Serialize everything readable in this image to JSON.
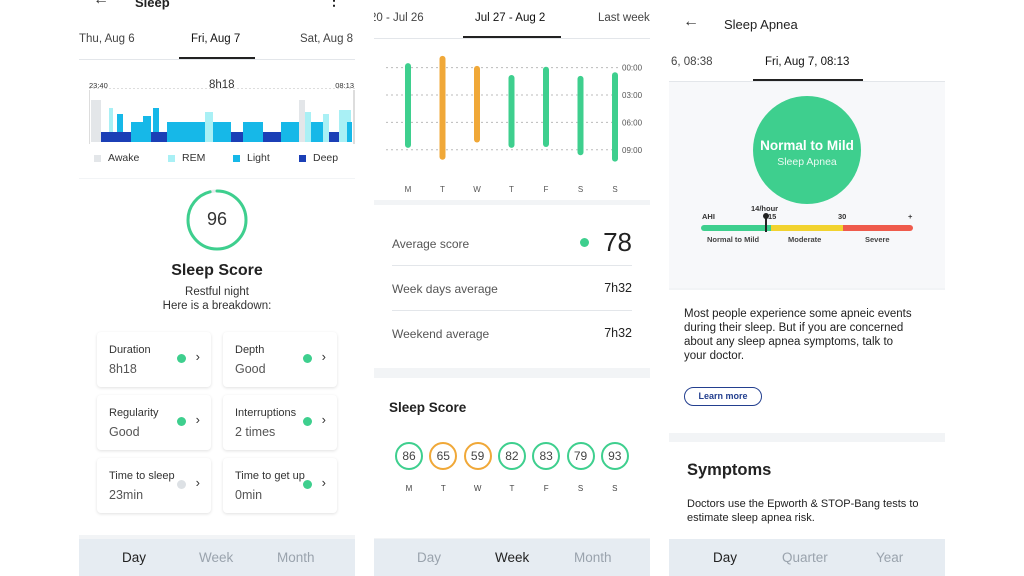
{
  "screen1": {
    "header": {
      "back_icon": "arrow-left-icon",
      "title": "Sleep",
      "menu_icon": "more-vertical-icon"
    },
    "date_tabs": [
      "Thu, Aug 6",
      "Fri, Aug 7",
      "Sat, Aug 8"
    ],
    "hypnogram": {
      "start": "23:40",
      "duration": "8h18",
      "end": "08:13"
    },
    "legend": [
      {
        "label": "Awake",
        "color": "#e3e6e9"
      },
      {
        "label": "REM",
        "color": "#a9f0f5"
      },
      {
        "label": "Light",
        "color": "#16b8e8"
      },
      {
        "label": "Deep",
        "color": "#1b3fb6"
      }
    ],
    "score": {
      "value": "96",
      "title": "Sleep Score",
      "subtitle": "Restful night",
      "subtitle2": "Here is a breakdown:",
      "level": 0.96
    },
    "metrics": [
      {
        "title": "Duration",
        "value": "8h18",
        "status": "green"
      },
      {
        "title": "Depth",
        "value": "Good",
        "status": "green"
      },
      {
        "title": "Regularity",
        "value": "Good",
        "status": "green"
      },
      {
        "title": "Interruptions",
        "value": "2 times",
        "status": "green"
      },
      {
        "title": "Time to sleep",
        "value": "23min",
        "status": "grey"
      },
      {
        "title": "Time to get up",
        "value": "0min",
        "status": "green"
      }
    ],
    "bottom_nav": [
      "Day",
      "Week",
      "Month"
    ]
  },
  "screen2": {
    "date_tabs": [
      "20 - Jul 26",
      "Jul 27 - Aug 2",
      "Last week"
    ],
    "chart_data": {
      "type": "bar",
      "categories": [
        "M",
        "T",
        "W",
        "T",
        "F",
        "S",
        "S"
      ],
      "y_ticks": [
        "00:00",
        "03:00",
        "06:00",
        "09:00"
      ],
      "ylim": [
        -1.5,
        11
      ],
      "series": [
        {
          "start": [
            -0.5,
            -1.3,
            -0.2,
            0.8,
            -0.1,
            0.9,
            0.5
          ],
          "end": [
            8.8,
            10.1,
            8.2,
            8.8,
            8.7,
            9.6,
            10.3
          ],
          "colors": [
            "#3ecf8e",
            "#f0a838",
            "#f0a838",
            "#3ecf8e",
            "#3ecf8e",
            "#3ecf8e",
            "#3ecf8e"
          ]
        }
      ]
    },
    "stats": [
      {
        "label": "Average score",
        "value": "78"
      },
      {
        "label": "Week days average",
        "value": "7h32"
      },
      {
        "label": "Weekend average",
        "value": "7h32"
      }
    ],
    "sleep_score": {
      "title": "Sleep Score",
      "days": [
        "M",
        "T",
        "W",
        "T",
        "F",
        "S",
        "S"
      ],
      "scores": [
        "86",
        "65",
        "59",
        "82",
        "83",
        "79",
        "93"
      ],
      "colors": [
        "#3ecf8e",
        "#f0a838",
        "#f0a838",
        "#3ecf8e",
        "#3ecf8e",
        "#3ecf8e",
        "#3ecf8e"
      ]
    },
    "bottom_nav": [
      "Day",
      "Week",
      "Month"
    ]
  },
  "screen3": {
    "header": {
      "back_icon": "arrow-left-icon",
      "title": "Sleep Apnea"
    },
    "date_tabs": [
      "6, 08:38",
      "Fri, Aug 7, 08:13"
    ],
    "result": {
      "title": "Normal to Mild",
      "subtitle": "Sleep Apnea"
    },
    "scale": {
      "ahi_label": "AHI",
      "marker": "14/hour",
      "tick1": "15",
      "tick2": "30",
      "tick3": "+",
      "zones": [
        "Normal to Mild",
        "Moderate",
        "Severe"
      ],
      "value_ahi": 14
    },
    "info": "Most people experience some apneic events during their sleep. But if you are concerned about any sleep apnea symptoms, talk to your doctor.",
    "learn_more": "Learn more",
    "symptoms": {
      "title": "Symptoms",
      "text": "Doctors use the Epworth & STOP-Bang tests to estimate sleep apnea risk."
    },
    "bottom_nav": [
      "Day",
      "Quarter",
      "Year"
    ]
  }
}
